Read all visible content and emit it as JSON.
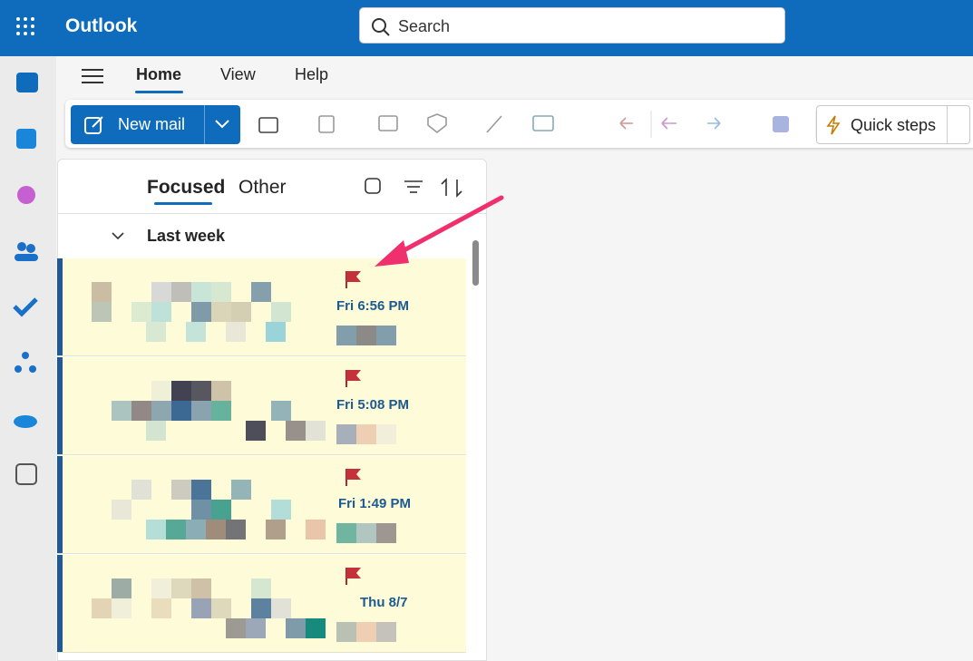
{
  "app": {
    "name": "Outlook",
    "search_placeholder": "Search"
  },
  "ribbon": {
    "tabs": [
      "Home",
      "View",
      "Help"
    ],
    "new_mail": "New mail",
    "quick_steps": "Quick steps"
  },
  "mail_list": {
    "tabs": [
      "Focused",
      "Other"
    ],
    "group": "Last week",
    "items": [
      {
        "time": "Fri 6:56 PM"
      },
      {
        "time": "Fri 5:08 PM"
      },
      {
        "time": "Fri 1:49 PM"
      },
      {
        "time": "Thu 8/7"
      }
    ]
  }
}
